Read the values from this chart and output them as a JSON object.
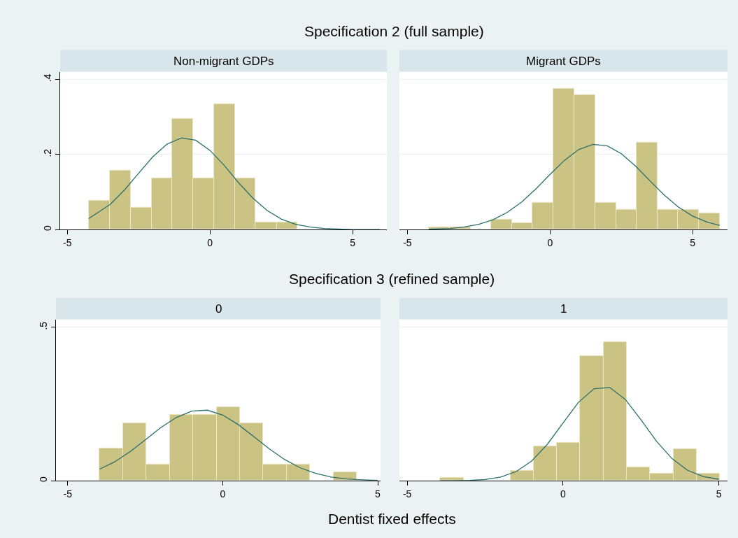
{
  "chart_data": [
    {
      "type": "histogram",
      "title": "Specification 2 (full sample)",
      "subtitle": "Non-migrant GDPs",
      "color": "#cbc383",
      "bins": [
        -4.25,
        -3.52,
        -2.78,
        -2.05,
        -1.32,
        -0.59,
        0.14,
        0.87,
        1.6,
        2.34,
        3.07
      ],
      "values": [
        0.078,
        0.157,
        0.059,
        0.137,
        0.295,
        0.137,
        0.334,
        0.137,
        0.019,
        0.019
      ],
      "series": [
        {
          "type": "line",
          "color": "#2a6f6b",
          "x": [
            -4.25,
            -3.5,
            -3,
            -2.5,
            -2,
            -1.5,
            -1,
            -0.5,
            0,
            0.5,
            1,
            1.5,
            2,
            2.5,
            3,
            3.5,
            4,
            5,
            5.95
          ],
          "values": [
            0.029,
            0.067,
            0.105,
            0.15,
            0.194,
            0.228,
            0.244,
            0.238,
            0.211,
            0.171,
            0.125,
            0.084,
            0.051,
            0.028,
            0.014,
            0.007,
            0.003,
            0.0,
            0.0
          ]
        }
      ],
      "xlim": [
        -5.25,
        6.2
      ],
      "xticks": [
        -5,
        0,
        5
      ],
      "ylim": [
        0,
        0.42
      ],
      "yticks": [
        0,
        {
          "value": 0.2,
          "label": ".2"
        },
        {
          "value": 0.4,
          "label": ".4"
        }
      ],
      "grid": "y"
    },
    {
      "type": "histogram",
      "subtitle": "Migrant GDPs",
      "color": "#cbc383",
      "bins": [
        -4.25,
        -3.52,
        -2.79,
        -2.06,
        -1.34,
        -0.61,
        0.12,
        0.85,
        1.58,
        2.31,
        3.04,
        3.76,
        4.49,
        5.22,
        5.95
      ],
      "values": [
        0.007,
        0.007,
        0,
        0.026,
        0.017,
        0.071,
        0.375,
        0.358,
        0.071,
        0.053,
        0.232,
        0.053,
        0.053,
        0.044
      ],
      "series": [
        {
          "type": "line",
          "color": "#2a6f6b",
          "x": [
            -4.25,
            -3.5,
            -3,
            -2.5,
            -2,
            -1.5,
            -1,
            -0.5,
            0,
            0.5,
            1,
            1.5,
            2,
            2.5,
            3,
            3.5,
            4,
            4.5,
            5,
            5.5,
            5.95
          ],
          "values": [
            0.001,
            0.003,
            0.007,
            0.014,
            0.026,
            0.046,
            0.073,
            0.108,
            0.147,
            0.184,
            0.213,
            0.227,
            0.223,
            0.202,
            0.169,
            0.13,
            0.092,
            0.06,
            0.036,
            0.02,
            0.011
          ]
        }
      ],
      "xlim": [
        -5.28,
        6.22
      ],
      "xticks": [
        -5,
        0,
        5
      ],
      "ylim": [
        0,
        0.42
      ],
      "yticks": [
        {
          "value": 0,
          "label": null
        },
        {
          "value": 0.2,
          "label": null
        },
        {
          "value": 0.4,
          "label": null
        }
      ],
      "grid": "y",
      "tick_labels": "x"
    },
    {
      "type": "histogram",
      "title": "Specification 3 (refined sample)",
      "subtitle": "0",
      "xlabel": "Dentist fixed effects",
      "color": "#cbc383",
      "bins": [
        -3.97,
        -3.22,
        -2.46,
        -1.71,
        -0.96,
        -0.2,
        0.55,
        1.31,
        2.06,
        2.81,
        3.57,
        4.32
      ],
      "values": [
        0.106,
        0.187,
        0.053,
        0.215,
        0.215,
        0.24,
        0.187,
        0.053,
        0.053,
        0,
        0.028
      ],
      "series": [
        {
          "type": "line",
          "color": "#2a6f6b",
          "x": [
            -3.97,
            -3.5,
            -3,
            -2.5,
            -2,
            -1.5,
            -1,
            -0.5,
            0,
            0.5,
            1,
            1.5,
            2,
            2.5,
            3,
            3.5,
            4,
            4.5,
            5
          ],
          "values": [
            0.038,
            0.061,
            0.094,
            0.133,
            0.173,
            0.206,
            0.227,
            0.23,
            0.214,
            0.183,
            0.144,
            0.104,
            0.069,
            0.042,
            0.024,
            0.012,
            0.006,
            0.003,
            0.001
          ]
        }
      ],
      "xlim": [
        -5.38,
        5.09
      ],
      "xticks": [
        -5,
        0,
        5
      ],
      "ylim": [
        0,
        0.525
      ],
      "yticks": [
        0,
        {
          "value": 0.5,
          "label": ".5"
        }
      ],
      "grid": "y"
    },
    {
      "type": "histogram",
      "subtitle": "1",
      "color": "#cbc383",
      "bins": [
        -3.94,
        -3.19,
        -2.44,
        -1.69,
        -0.94,
        -0.2,
        0.55,
        1.3,
        2.04,
        2.79,
        3.54,
        4.29,
        5.04
      ],
      "values": [
        0.011,
        0,
        0,
        0.033,
        0.113,
        0.124,
        0.407,
        0.453,
        0.045,
        0.023,
        0.103,
        0.023
      ],
      "series": [
        {
          "type": "line",
          "color": "#2a6f6b",
          "x": [
            -3.94,
            -3.5,
            -3,
            -2.5,
            -2,
            -1.5,
            -1,
            -0.5,
            0,
            0.5,
            1,
            1.5,
            2,
            2.5,
            3,
            3.5,
            4,
            4.5,
            5
          ],
          "values": [
            0.0,
            0.0,
            0.001,
            0.004,
            0.012,
            0.03,
            0.065,
            0.119,
            0.188,
            0.256,
            0.3,
            0.304,
            0.265,
            0.199,
            0.129,
            0.072,
            0.034,
            0.014,
            0.005
          ]
        }
      ],
      "xlim": [
        -5.25,
        5.28
      ],
      "xticks": [
        -5,
        0,
        5
      ],
      "ylim": [
        0,
        0.525
      ],
      "yticks": [
        {
          "value": 0,
          "label": null
        },
        {
          "value": 0.5,
          "label": null
        }
      ],
      "grid": "y",
      "tick_labels": "x"
    }
  ]
}
